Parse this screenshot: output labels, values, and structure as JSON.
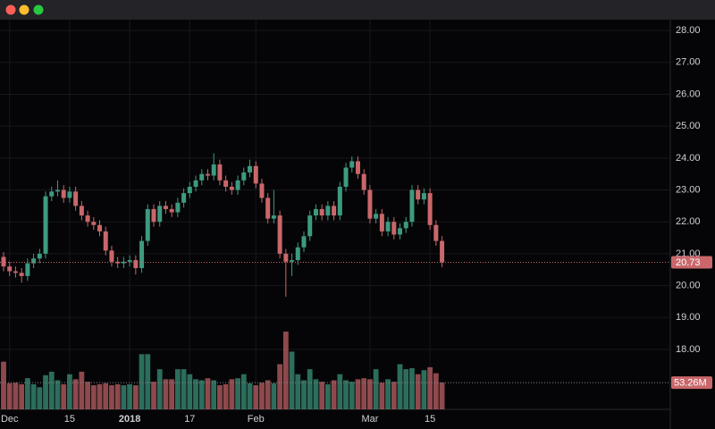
{
  "chart_data": {
    "type": "candlestick",
    "categories": [
      null,
      "Dec",
      null,
      null,
      null,
      null,
      null,
      null,
      null,
      null,
      null,
      "15",
      null,
      null,
      null,
      null,
      null,
      null,
      null,
      null,
      null,
      "2018",
      null,
      null,
      null,
      null,
      null,
      null,
      null,
      null,
      null,
      "17",
      null,
      null,
      null,
      null,
      null,
      null,
      null,
      null,
      null,
      null,
      "Feb",
      null,
      null,
      null,
      null,
      null,
      null,
      null,
      null,
      null,
      null,
      null,
      null,
      null,
      null,
      null,
      null,
      null,
      null,
      "Mar",
      null,
      null,
      null,
      null,
      null,
      null,
      null,
      null,
      null,
      "15",
      null,
      null
    ],
    "open": [
      20.9,
      20.6,
      20.45,
      20.4,
      20.3,
      20.7,
      20.85,
      21.0,
      22.8,
      22.95,
      23.0,
      22.75,
      22.95,
      22.5,
      22.2,
      22.0,
      21.9,
      21.7,
      21.1,
      20.75,
      20.7,
      20.75,
      20.8,
      20.55,
      21.4,
      22.4,
      22.0,
      22.5,
      22.4,
      22.3,
      22.6,
      22.9,
      23.1,
      23.3,
      23.5,
      23.45,
      23.8,
      23.3,
      23.1,
      23.0,
      23.3,
      23.55,
      23.75,
      23.2,
      22.75,
      22.1,
      22.2,
      21.0,
      20.75,
      20.8,
      21.2,
      21.55,
      22.2,
      22.4,
      22.2,
      22.5,
      22.2,
      23.1,
      23.7,
      23.9,
      23.5,
      23.0,
      22.1,
      22.25,
      21.7,
      22.0,
      21.6,
      21.8,
      22.0,
      23.0,
      22.7,
      22.9,
      21.9,
      21.4
    ],
    "high": [
      21.05,
      20.75,
      20.6,
      20.55,
      20.85,
      21.0,
      21.15,
      22.95,
      23.1,
      23.3,
      23.15,
      23.1,
      23.1,
      22.65,
      22.35,
      22.15,
      22.05,
      21.85,
      21.25,
      20.9,
      20.9,
      20.95,
      20.95,
      21.55,
      22.55,
      22.55,
      22.65,
      22.65,
      22.55,
      22.75,
      23.05,
      23.25,
      23.45,
      23.65,
      23.65,
      24.15,
      23.95,
      23.45,
      23.25,
      23.45,
      23.7,
      23.95,
      23.9,
      23.35,
      22.9,
      23.0,
      22.35,
      21.15,
      21.0,
      21.35,
      21.7,
      22.35,
      22.55,
      22.55,
      22.65,
      22.65,
      23.25,
      23.85,
      24.05,
      24.05,
      23.65,
      23.15,
      22.4,
      22.4,
      22.15,
      22.15,
      21.95,
      22.15,
      23.15,
      23.15,
      23.05,
      23.05,
      22.05,
      21.55
    ],
    "low": [
      20.45,
      20.3,
      20.25,
      20.1,
      20.15,
      20.55,
      20.7,
      20.85,
      22.65,
      22.8,
      22.6,
      22.6,
      22.35,
      22.05,
      21.85,
      21.75,
      21.55,
      20.95,
      20.6,
      20.55,
      20.55,
      20.6,
      20.35,
      20.4,
      21.25,
      21.85,
      21.85,
      22.25,
      22.15,
      22.15,
      22.45,
      22.75,
      22.95,
      23.15,
      23.3,
      23.3,
      23.15,
      22.95,
      22.85,
      22.85,
      23.15,
      23.4,
      23.05,
      22.6,
      21.95,
      21.95,
      20.85,
      19.65,
      20.3,
      20.65,
      21.05,
      21.4,
      22.05,
      22.05,
      22.05,
      22.05,
      22.05,
      22.95,
      23.55,
      23.35,
      22.85,
      21.95,
      21.95,
      21.55,
      21.55,
      21.45,
      21.45,
      21.65,
      21.85,
      22.55,
      22.55,
      21.75,
      21.25,
      20.58
    ],
    "close": [
      20.6,
      20.45,
      20.4,
      20.3,
      20.7,
      20.85,
      21.0,
      22.8,
      22.95,
      23.0,
      22.75,
      22.95,
      22.5,
      22.2,
      22.0,
      21.9,
      21.7,
      21.1,
      20.75,
      20.7,
      20.75,
      20.8,
      20.55,
      21.4,
      22.4,
      22.0,
      22.5,
      22.4,
      22.3,
      22.6,
      22.9,
      23.1,
      23.3,
      23.5,
      23.45,
      23.8,
      23.3,
      23.1,
      23.0,
      23.3,
      23.55,
      23.75,
      23.2,
      22.75,
      22.1,
      22.2,
      21.0,
      20.75,
      20.8,
      21.2,
      21.55,
      22.2,
      22.4,
      22.2,
      22.5,
      22.2,
      23.1,
      23.7,
      23.9,
      23.5,
      23.0,
      22.1,
      22.25,
      21.7,
      22.0,
      21.6,
      21.8,
      22.0,
      23.0,
      22.7,
      22.9,
      21.9,
      21.4,
      20.73
    ],
    "volume": [
      95,
      52,
      53,
      50,
      62,
      50,
      44,
      68,
      75,
      58,
      50,
      70,
      60,
      75,
      55,
      48,
      50,
      52,
      48,
      50,
      48,
      50,
      48,
      110,
      110,
      55,
      80,
      60,
      60,
      80,
      80,
      70,
      60,
      58,
      62,
      58,
      48,
      50,
      60,
      62,
      70,
      52,
      48,
      53,
      58,
      52,
      90,
      155,
      115,
      70,
      58,
      80,
      60,
      55,
      50,
      58,
      70,
      58,
      55,
      60,
      62,
      60,
      80,
      53,
      60,
      55,
      90,
      80,
      82,
      70,
      78,
      84,
      72,
      53.26
    ],
    "volume_value_labels": [
      null,
      null,
      null,
      null,
      null,
      null,
      null,
      null,
      null,
      null,
      null,
      null,
      null,
      null,
      null,
      null,
      null,
      null,
      null,
      null,
      null,
      null,
      null,
      null,
      null,
      null,
      null,
      null,
      null,
      null,
      null,
      null,
      null,
      null,
      null,
      null,
      null,
      null,
      null,
      null,
      null,
      null,
      null,
      null,
      null,
      null,
      null,
      null,
      null,
      null,
      null,
      null,
      null,
      null,
      null,
      null,
      null,
      null,
      null,
      null,
      null,
      null,
      null,
      null,
      null,
      null,
      null,
      null,
      null,
      null,
      null,
      null,
      null,
      "53.26M"
    ],
    "ylim": [
      16.12,
      28.34
    ],
    "yticks": [
      {
        "value": 18,
        "label": "18.00"
      },
      {
        "value": 19,
        "label": "19.00"
      },
      {
        "value": 20,
        "label": "20.00"
      },
      {
        "value": 21,
        "label": "21.00"
      },
      {
        "value": 22,
        "label": "22.00"
      },
      {
        "value": 23,
        "label": "23.00"
      },
      {
        "value": 24,
        "label": "24.00"
      },
      {
        "value": 25,
        "label": "25.00"
      },
      {
        "value": 26,
        "label": "26.00"
      },
      {
        "value": 27,
        "label": "27.00"
      },
      {
        "value": 28,
        "label": "28.00"
      }
    ],
    "up_color": "#3d9a80",
    "down_color": "#c9676a",
    "grid": true
  }
}
